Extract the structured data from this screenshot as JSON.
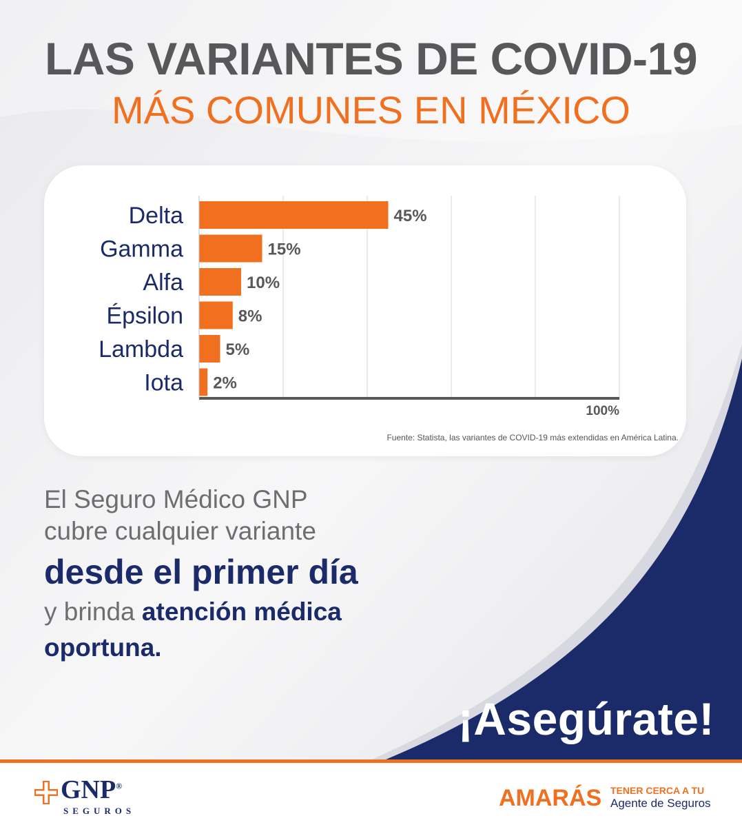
{
  "header": {
    "title_line1": "LAS VARIANTES DE COVID-19",
    "title_line2": "MÁS COMUNES EN MÉXICO"
  },
  "chart_data": {
    "type": "bar",
    "orientation": "horizontal",
    "categories": [
      "Delta",
      "Gamma",
      "Alfa",
      "Épsilon",
      "Lambda",
      "Iota"
    ],
    "values": [
      45,
      15,
      10,
      8,
      5,
      2
    ],
    "value_labels": [
      "45%",
      "15%",
      "10%",
      "8%",
      "5%",
      "2%"
    ],
    "xlim": [
      0,
      100
    ],
    "x_tick_label": "100%",
    "grid": true,
    "bar_color": "#f07020",
    "source": "Fuente: Statista, las variantes de COVID-19 más extendidas en América Latina."
  },
  "body": {
    "line1": "El Seguro Médico GNP",
    "line2": "cubre cualquier variante",
    "line3": "desde el primer día",
    "line4_prefix": "y brinda ",
    "line4_bold": "atención médica",
    "line5": "oportuna."
  },
  "cta": "¡Asegúrate!",
  "footer": {
    "gnp_name": "GNP",
    "gnp_reg": "®",
    "gnp_sub": "SEGUROS",
    "amaras": "AMARÁS",
    "amaras_sub1": "TENER CERCA A TU",
    "amaras_sub2": "Agente de Seguros"
  },
  "colors": {
    "orange": "#f07020",
    "navy": "#1b2b6a",
    "gray_text": "#58585a"
  }
}
